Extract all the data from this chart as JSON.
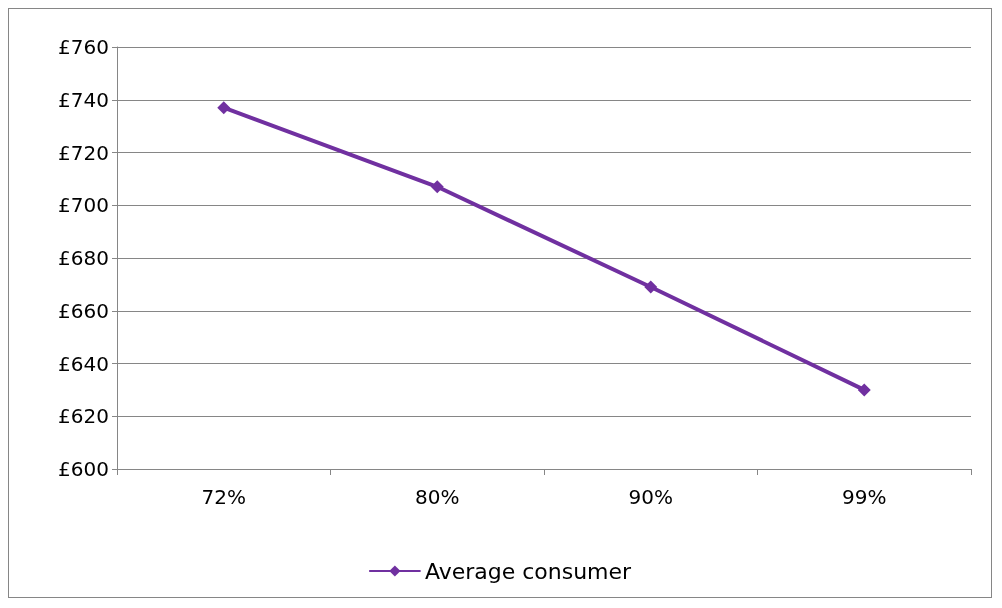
{
  "chart_data": {
    "type": "line",
    "categories": [
      "72%",
      "80%",
      "90%",
      "99%"
    ],
    "series": [
      {
        "name": "Average consumer",
        "color": "#7030a0",
        "values": [
          737,
          707,
          669,
          630
        ]
      }
    ],
    "ylim": [
      600,
      760
    ],
    "yticks": [
      {
        "value": 600,
        "label": "£600"
      },
      {
        "value": 620,
        "label": "£620"
      },
      {
        "value": 640,
        "label": "£640"
      },
      {
        "value": 660,
        "label": "£660"
      },
      {
        "value": 680,
        "label": "£680"
      },
      {
        "value": 700,
        "label": "£700"
      },
      {
        "value": 720,
        "label": "£720"
      },
      {
        "value": 740,
        "label": "£740"
      },
      {
        "value": 760,
        "label": "£760"
      }
    ],
    "grid": "y",
    "legend": "bottom",
    "marker": "diamond",
    "line_style": "solid"
  }
}
